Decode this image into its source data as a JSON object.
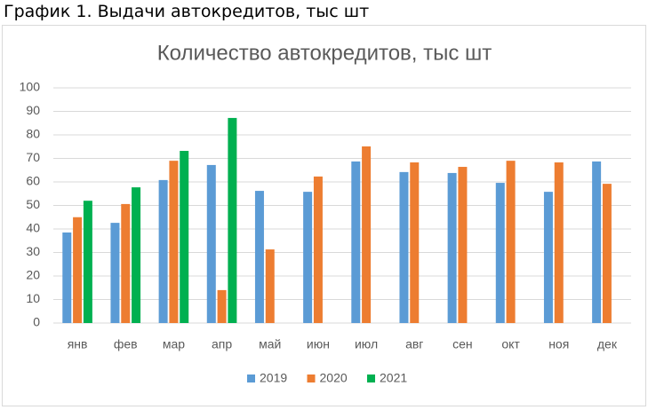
{
  "caption": "График 1. Выдачи автокредитов, тыс шт",
  "chart_data": {
    "type": "bar",
    "title": "Количество автокредитов, тыс шт",
    "categories": [
      "янв",
      "фев",
      "мар",
      "апр",
      "май",
      "июн",
      "июл",
      "авг",
      "сен",
      "окт",
      "ноя",
      "дек"
    ],
    "series": [
      {
        "name": "2019",
        "color": "#5b9bd5",
        "values": [
          38.5,
          42.6,
          60.8,
          67.2,
          56.2,
          55.8,
          68.7,
          64.2,
          63.8,
          59.6,
          55.8,
          68.7
        ]
      },
      {
        "name": "2020",
        "color": "#ed7d31",
        "values": [
          45,
          50.6,
          69,
          14,
          31.3,
          62.3,
          75.1,
          68.3,
          66.4,
          69,
          68.3,
          59.2
        ]
      },
      {
        "name": "2021",
        "color": "#00b050",
        "values": [
          52,
          57.7,
          73.2,
          87.2,
          null,
          null,
          null,
          null,
          null,
          null,
          null,
          null
        ]
      }
    ],
    "ylim": [
      0,
      100
    ],
    "yticks": [
      0,
      10,
      20,
      30,
      40,
      50,
      60,
      70,
      80,
      90,
      100
    ],
    "grid": true,
    "legend": "bottom"
  }
}
